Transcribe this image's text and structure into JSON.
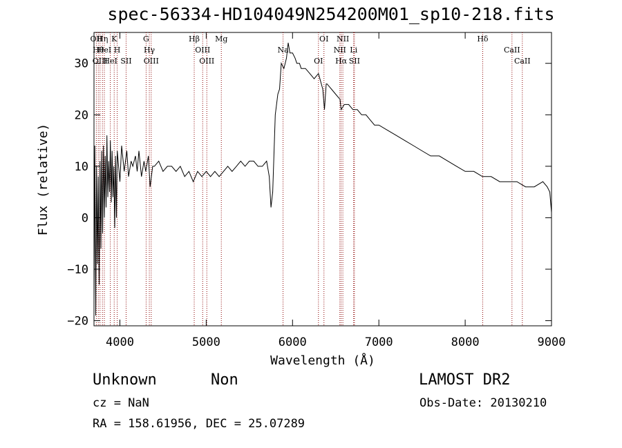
{
  "chart_data": {
    "type": "line",
    "title": "spec-56334-HD104049N254200M01_sp10-218.fits",
    "xlabel": "Wavelength (Å)",
    "ylabel": "Flux (relative)",
    "xlim": [
      3700,
      9000
    ],
    "ylim": [
      -21,
      36
    ],
    "xticks": [
      4000,
      5000,
      6000,
      7000,
      8000,
      9000
    ],
    "yticks": [
      -20,
      -10,
      0,
      10,
      20,
      30
    ],
    "series": [
      {
        "color": "#000000",
        "points": [
          [
            3700,
            -16
          ],
          [
            3710,
            14
          ],
          [
            3720,
            -19
          ],
          [
            3730,
            10
          ],
          [
            3740,
            -9
          ],
          [
            3750,
            8
          ],
          [
            3760,
            -13
          ],
          [
            3770,
            11
          ],
          [
            3780,
            -6
          ],
          [
            3790,
            13
          ],
          [
            3800,
            -3
          ],
          [
            3810,
            14
          ],
          [
            3820,
            0
          ],
          [
            3830,
            12
          ],
          [
            3840,
            2
          ],
          [
            3850,
            16
          ],
          [
            3860,
            4
          ],
          [
            3870,
            11
          ],
          [
            3880,
            5
          ],
          [
            3890,
            15
          ],
          [
            3900,
            3
          ],
          [
            3910,
            13
          ],
          [
            3920,
            4
          ],
          [
            3930,
            10
          ],
          [
            3940,
            -2
          ],
          [
            3950,
            12
          ],
          [
            3960,
            0
          ],
          [
            3970,
            13
          ],
          [
            4000,
            7
          ],
          [
            4020,
            14
          ],
          [
            4050,
            9
          ],
          [
            4080,
            13
          ],
          [
            4100,
            8
          ],
          [
            4130,
            11
          ],
          [
            4150,
            10
          ],
          [
            4180,
            12
          ],
          [
            4200,
            9
          ],
          [
            4220,
            13
          ],
          [
            4250,
            8
          ],
          [
            4280,
            11
          ],
          [
            4300,
            9
          ],
          [
            4330,
            12
          ],
          [
            4350,
            6
          ],
          [
            4380,
            10
          ],
          [
            4400,
            10
          ],
          [
            4450,
            11
          ],
          [
            4500,
            9
          ],
          [
            4550,
            10
          ],
          [
            4600,
            10
          ],
          [
            4650,
            9
          ],
          [
            4700,
            10
          ],
          [
            4750,
            8
          ],
          [
            4800,
            9
          ],
          [
            4850,
            7
          ],
          [
            4900,
            9
          ],
          [
            4950,
            8
          ],
          [
            5000,
            9
          ],
          [
            5050,
            8
          ],
          [
            5100,
            9
          ],
          [
            5150,
            8
          ],
          [
            5200,
            9
          ],
          [
            5250,
            10
          ],
          [
            5300,
            9
          ],
          [
            5350,
            10
          ],
          [
            5400,
            11
          ],
          [
            5450,
            10
          ],
          [
            5500,
            11
          ],
          [
            5550,
            11
          ],
          [
            5600,
            10
          ],
          [
            5650,
            10
          ],
          [
            5700,
            11
          ],
          [
            5730,
            8
          ],
          [
            5750,
            2
          ],
          [
            5770,
            5
          ],
          [
            5800,
            20
          ],
          [
            5830,
            24
          ],
          [
            5850,
            25
          ],
          [
            5870,
            30
          ],
          [
            5900,
            29
          ],
          [
            5930,
            31
          ],
          [
            5950,
            34
          ],
          [
            5970,
            32
          ],
          [
            6000,
            32
          ],
          [
            6030,
            31
          ],
          [
            6050,
            30
          ],
          [
            6080,
            30
          ],
          [
            6100,
            29
          ],
          [
            6150,
            29
          ],
          [
            6200,
            28
          ],
          [
            6250,
            27
          ],
          [
            6300,
            28
          ],
          [
            6350,
            25
          ],
          [
            6370,
            21
          ],
          [
            6390,
            26
          ],
          [
            6400,
            26
          ],
          [
            6450,
            25
          ],
          [
            6500,
            24
          ],
          [
            6550,
            23
          ],
          [
            6563,
            21
          ],
          [
            6600,
            22
          ],
          [
            6650,
            22
          ],
          [
            6700,
            21
          ],
          [
            6750,
            21
          ],
          [
            6800,
            20
          ],
          [
            6850,
            20
          ],
          [
            6900,
            19
          ],
          [
            6950,
            18
          ],
          [
            7000,
            18
          ],
          [
            7100,
            17
          ],
          [
            7200,
            16
          ],
          [
            7300,
            15
          ],
          [
            7400,
            14
          ],
          [
            7500,
            13
          ],
          [
            7600,
            12
          ],
          [
            7700,
            12
          ],
          [
            7800,
            11
          ],
          [
            7900,
            10
          ],
          [
            8000,
            9
          ],
          [
            8100,
            9
          ],
          [
            8200,
            8
          ],
          [
            8300,
            8
          ],
          [
            8400,
            7
          ],
          [
            8500,
            7
          ],
          [
            8600,
            7
          ],
          [
            8700,
            6
          ],
          [
            8800,
            6
          ],
          [
            8900,
            7
          ],
          [
            8950,
            6
          ],
          [
            8980,
            5
          ],
          [
            9000,
            1
          ]
        ]
      }
    ],
    "lines": [
      {
        "wavelength": 3727,
        "label": "OII"
      },
      {
        "wavelength": 3750,
        "label": "Hθ"
      },
      {
        "wavelength": 3770,
        "label": "OIII"
      },
      {
        "wavelength": 3798,
        "label": "Hη"
      },
      {
        "wavelength": 3820,
        "label": "HeI"
      },
      {
        "wavelength": 3889,
        "label": "HeI"
      },
      {
        "wavelength": 3934,
        "label": "K"
      },
      {
        "wavelength": 3969,
        "label": "H"
      },
      {
        "wavelength": 4072,
        "label": "SII"
      },
      {
        "wavelength": 4304,
        "label": "G"
      },
      {
        "wavelength": 4341,
        "label": "Hγ"
      },
      {
        "wavelength": 4363,
        "label": "OIII"
      },
      {
        "wavelength": 4861,
        "label": "Hβ"
      },
      {
        "wavelength": 4959,
        "label": "OIII"
      },
      {
        "wavelength": 5007,
        "label": "OIII"
      },
      {
        "wavelength": 5175,
        "label": "Mg"
      },
      {
        "wavelength": 5890,
        "label": "Na"
      },
      {
        "wavelength": 6300,
        "label": "OI"
      },
      {
        "wavelength": 6364,
        "label": "OI"
      },
      {
        "wavelength": 6548,
        "label": "NII"
      },
      {
        "wavelength": 6563,
        "label": "Hα"
      },
      {
        "wavelength": 6583,
        "label": "NII"
      },
      {
        "wavelength": 6708,
        "label": "Li"
      },
      {
        "wavelength": 6717,
        "label": "SII"
      },
      {
        "wavelength": 8203,
        "label": "Hδ"
      },
      {
        "wavelength": 8542,
        "label": "CaII"
      },
      {
        "wavelength": 8662,
        "label": "CaII"
      }
    ]
  },
  "info": {
    "class": "Unknown",
    "subclass": "Non",
    "survey": "LAMOST DR2",
    "redshift": "cz = NaN",
    "obs_date": "Obs-Date: 20130210",
    "coords": "RA = 158.61956, DEC =  25.07289"
  }
}
